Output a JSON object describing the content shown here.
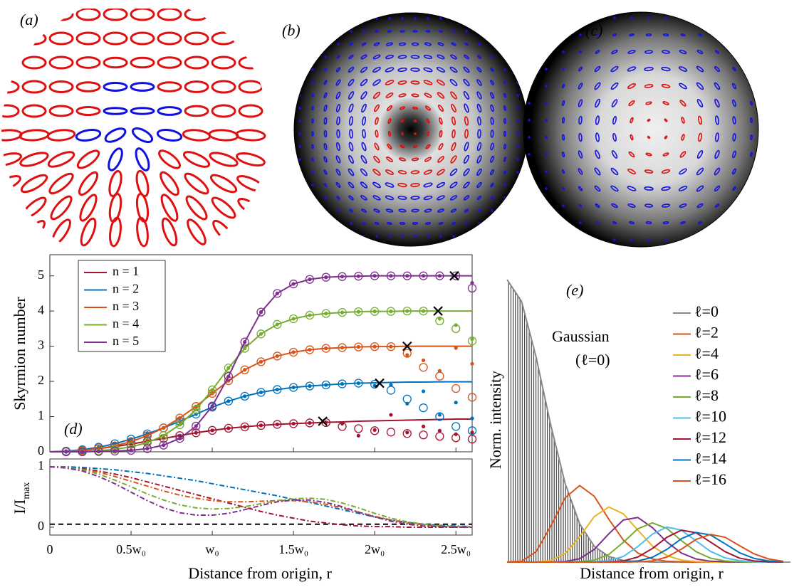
{
  "panels": [
    "(a)",
    "(b)",
    "(c)"
  ],
  "chart_data": [
    {
      "type": "line",
      "label": "(d)",
      "ylabel": "Skyrmion number",
      "legend": "upper left",
      "x": [
        0,
        0.1,
        0.2,
        0.3,
        0.4,
        0.5,
        0.6,
        0.7,
        0.8,
        0.9,
        1.0,
        1.1,
        1.2,
        1.3,
        1.4,
        1.5,
        1.6,
        1.7,
        1.8,
        1.9,
        2.0,
        2.1,
        2.2,
        2.3,
        2.4,
        2.5,
        2.6
      ],
      "xlim": [
        0,
        2.6
      ],
      "xticks": [
        0,
        0.5,
        1,
        1.5,
        2,
        2.5
      ],
      "ylim": [
        0,
        5.6
      ],
      "yticks": [
        0,
        1,
        2,
        3,
        4,
        5
      ],
      "series": [
        {
          "name": "n = 1",
          "color": "#a2142f",
          "values": [
            0,
            0.01,
            0.04,
            0.09,
            0.15,
            0.22,
            0.3,
            0.38,
            0.46,
            0.54,
            0.61,
            0.67,
            0.71,
            0.75,
            0.78,
            0.8,
            0.82,
            0.84,
            0.85,
            0.87,
            0.88,
            0.89,
            0.9,
            0.91,
            0.92,
            0.93,
            0.93
          ],
          "circles": [
            null,
            0.01,
            0.04,
            0.09,
            0.15,
            0.22,
            0.3,
            0.38,
            0.46,
            0.54,
            0.61,
            0.67,
            0.71,
            0.75,
            0.78,
            0.8,
            0.82,
            0.83,
            0.72,
            0.66,
            0.6,
            0.56,
            0.52,
            0.48,
            0.44,
            0.4,
            0.36
          ],
          "dots": [
            null,
            0.01,
            0.04,
            0.09,
            0.15,
            0.22,
            0.3,
            0.38,
            0.46,
            0.54,
            0.61,
            0.67,
            0.71,
            0.75,
            0.78,
            0.8,
            0.82,
            0.84,
            0.8,
            0.46,
            0.62,
            1.05,
            0.55,
            0.72,
            0.6,
            0.5,
            0.55
          ],
          "cross_x": 1.68,
          "cross_y": 0.87
        },
        {
          "name": "n = 2",
          "color": "#0072bd",
          "values": [
            0,
            0.02,
            0.06,
            0.13,
            0.23,
            0.36,
            0.51,
            0.68,
            0.87,
            1.07,
            1.27,
            1.44,
            1.58,
            1.69,
            1.77,
            1.83,
            1.87,
            1.9,
            1.93,
            1.95,
            1.96,
            1.97,
            1.98,
            1.98,
            1.99,
            1.99,
            1.99
          ],
          "circles": [
            null,
            0.02,
            0.06,
            0.13,
            0.23,
            0.36,
            0.51,
            0.68,
            0.87,
            1.07,
            1.27,
            1.44,
            1.58,
            1.69,
            1.77,
            1.83,
            1.87,
            1.9,
            1.93,
            1.95,
            1.92,
            1.75,
            1.5,
            1.25,
            1.0,
            0.72,
            0.6
          ],
          "dots": [
            null,
            0.02,
            0.06,
            0.13,
            0.23,
            0.36,
            0.51,
            0.68,
            0.87,
            1.07,
            1.27,
            1.44,
            1.58,
            1.69,
            1.77,
            1.83,
            1.87,
            1.9,
            1.93,
            1.95,
            1.88,
            1.9,
            1.37,
            1.72,
            1.05,
            1.4,
            0.95
          ],
          "cross_x": 2.03,
          "cross_y": 1.95
        },
        {
          "name": "n = 3",
          "color": "#d95319",
          "values": [
            0,
            0.01,
            0.04,
            0.09,
            0.17,
            0.29,
            0.46,
            0.68,
            0.96,
            1.29,
            1.66,
            2.02,
            2.33,
            2.56,
            2.72,
            2.83,
            2.9,
            2.94,
            2.96,
            2.98,
            2.99,
            2.99,
            3,
            3,
            3,
            3,
            3
          ],
          "circles": [
            null,
            0.01,
            0.04,
            0.09,
            0.17,
            0.29,
            0.46,
            0.68,
            0.96,
            1.29,
            1.66,
            2.02,
            2.33,
            2.56,
            2.72,
            2.83,
            2.9,
            2.94,
            2.96,
            2.98,
            2.99,
            2.99,
            2.8,
            2.4,
            2.15,
            1.8,
            1.55
          ],
          "dots": [
            null,
            0.01,
            0.04,
            0.09,
            0.17,
            0.29,
            0.46,
            0.68,
            0.96,
            1.29,
            1.66,
            2.02,
            2.33,
            2.56,
            2.72,
            2.83,
            2.9,
            2.94,
            2.96,
            2.98,
            2.99,
            2.99,
            2.75,
            2.6,
            2.3,
            2.95,
            2.5
          ],
          "cross_x": 2.2,
          "cross_y": 3.0
        },
        {
          "name": "n = 4",
          "color": "#77ac30",
          "values": [
            0,
            0,
            0.01,
            0.03,
            0.07,
            0.14,
            0.26,
            0.46,
            0.77,
            1.2,
            1.76,
            2.38,
            2.94,
            3.35,
            3.62,
            3.78,
            3.88,
            3.93,
            3.96,
            3.98,
            3.99,
            3.99,
            4,
            4,
            4,
            4,
            4
          ],
          "circles": [
            null,
            0,
            0.01,
            0.03,
            0.07,
            0.14,
            0.26,
            0.46,
            0.77,
            1.2,
            1.76,
            2.38,
            2.94,
            3.35,
            3.62,
            3.78,
            3.88,
            3.93,
            3.96,
            3.98,
            3.99,
            3.99,
            4,
            4,
            3.72,
            3.5,
            3.15
          ],
          "dots": [
            null,
            0,
            0.01,
            0.03,
            0.07,
            0.14,
            0.26,
            0.46,
            0.77,
            1.2,
            1.76,
            2.38,
            2.94,
            3.35,
            3.62,
            3.78,
            3.88,
            3.93,
            3.96,
            3.98,
            3.99,
            3.99,
            4,
            4,
            3.78,
            3.6,
            3.2
          ],
          "cross_x": 2.39,
          "cross_y": 4.0
        },
        {
          "name": "n = 5",
          "color": "#7e2f8e",
          "values": [
            0,
            0,
            0,
            0.01,
            0.02,
            0.04,
            0.09,
            0.19,
            0.38,
            0.73,
            1.3,
            2.14,
            3.12,
            3.97,
            4.5,
            4.77,
            4.9,
            4.96,
            4.98,
            4.99,
            5,
            5,
            5,
            5,
            5,
            5,
            5
          ],
          "circles": [
            null,
            0,
            0,
            0.01,
            0.02,
            0.04,
            0.09,
            0.19,
            0.38,
            0.73,
            1.3,
            2.14,
            3.12,
            3.97,
            4.5,
            4.77,
            4.9,
            4.96,
            4.98,
            4.99,
            5,
            5,
            5,
            5,
            5,
            5,
            4.65
          ],
          "dots": [
            null,
            0,
            0,
            0.01,
            0.02,
            0.04,
            0.09,
            0.19,
            0.38,
            0.73,
            1.3,
            2.14,
            3.12,
            3.97,
            4.5,
            4.77,
            4.9,
            4.96,
            4.98,
            4.99,
            5,
            5,
            5,
            5,
            5,
            5,
            4.8
          ],
          "cross_x": 2.49,
          "cross_y": 5.0
        }
      ]
    },
    {
      "type": "line",
      "style": "dashdot",
      "ylabel": "I/I",
      "ylabel_sub": "max",
      "xlabel": "Distance from origin, r",
      "x": [
        0,
        0.1,
        0.2,
        0.3,
        0.4,
        0.5,
        0.6,
        0.7,
        0.8,
        0.9,
        1.0,
        1.1,
        1.2,
        1.3,
        1.4,
        1.5,
        1.6,
        1.7,
        1.8,
        1.9,
        2.0,
        2.1,
        2.2,
        2.3,
        2.4,
        2.5,
        2.6
      ],
      "xlim": [
        0,
        2.6
      ],
      "xticks": [
        0,
        {
          "value": 0.5,
          "label": "0.5w₀"
        },
        {
          "value": 1,
          "label": "w₀"
        },
        {
          "value": 1.5,
          "label": "1.5w₀"
        },
        {
          "value": 2,
          "label": "2w₀"
        },
        {
          "value": 2.5,
          "label": "2.5w₀"
        }
      ],
      "ylim": [
        -0.13,
        1.13
      ],
      "yticks": [
        0,
        1
      ],
      "threshold": 0.05,
      "threshold_color": "#000000",
      "series": [
        {
          "color": "#a2142f",
          "values": [
            1,
            0.99,
            0.97,
            0.93,
            0.88,
            0.82,
            0.75,
            0.68,
            0.61,
            0.54,
            0.47,
            0.4,
            0.33,
            0.26,
            0.2,
            0.15,
            0.1,
            0.07,
            0.04,
            0.02,
            0.01,
            0.01,
            0,
            0,
            0,
            0,
            0
          ]
        },
        {
          "color": "#0072bd",
          "values": [
            1,
            1,
            0.99,
            0.97,
            0.95,
            0.92,
            0.89,
            0.85,
            0.81,
            0.77,
            0.72,
            0.67,
            0.62,
            0.57,
            0.52,
            0.46,
            0.41,
            0.35,
            0.29,
            0.23,
            0.17,
            0.12,
            0.08,
            0.05,
            0.03,
            0.02,
            0.01
          ]
        },
        {
          "color": "#d95319",
          "values": [
            1,
            0.99,
            0.96,
            0.91,
            0.84,
            0.76,
            0.68,
            0.6,
            0.53,
            0.48,
            0.44,
            0.42,
            0.42,
            0.43,
            0.44,
            0.44,
            0.42,
            0.38,
            0.32,
            0.25,
            0.18,
            0.12,
            0.07,
            0.04,
            0.02,
            0.01,
            0
          ]
        },
        {
          "color": "#77ac30",
          "values": [
            1,
            0.99,
            0.95,
            0.88,
            0.78,
            0.67,
            0.55,
            0.45,
            0.37,
            0.32,
            0.3,
            0.31,
            0.34,
            0.39,
            0.44,
            0.47,
            0.48,
            0.46,
            0.4,
            0.32,
            0.23,
            0.15,
            0.09,
            0.05,
            0.02,
            0.01,
            0
          ]
        },
        {
          "color": "#7e2f8e",
          "values": [
            1,
            0.98,
            0.93,
            0.84,
            0.72,
            0.58,
            0.44,
            0.32,
            0.24,
            0.2,
            0.2,
            0.23,
            0.29,
            0.36,
            0.42,
            0.45,
            0.45,
            0.41,
            0.34,
            0.25,
            0.17,
            0.1,
            0.05,
            0.02,
            0.01,
            0,
            0
          ]
        }
      ]
    },
    {
      "type": "line",
      "label": "(e)",
      "ylabel": "Norm. intensity",
      "xlabel": "Distance from origin, r",
      "annotation": [
        "Gaussian",
        "(ℓ=0)"
      ],
      "legend": "right",
      "x": [
        0,
        0.2,
        0.4,
        0.6,
        0.8,
        1.0,
        1.2,
        1.4,
        1.6,
        1.8,
        2.0,
        2.2,
        2.4,
        2.6,
        2.8,
        3.0,
        3.2,
        3.4,
        3.6,
        3.8
      ],
      "xlim": [
        0,
        3.9
      ],
      "ylim": [
        0,
        1
      ],
      "series": [
        {
          "name": "ℓ=0",
          "color": "#888888",
          "fill": "hatch",
          "values": [
            1,
            0.923,
            0.726,
            0.487,
            0.278,
            0.135,
            0.056,
            0.02,
            0.006,
            0.002,
            0,
            0,
            0,
            0,
            0,
            0,
            0,
            0,
            0,
            0
          ]
        },
        {
          "name": "ℓ=2",
          "color": "#d95319",
          "values": [
            0,
            0.003,
            0.037,
            0.126,
            0.228,
            0.271,
            0.233,
            0.152,
            0.078,
            0.032,
            0.011,
            0.003,
            0.001,
            0,
            0,
            0,
            0,
            0,
            0,
            0
          ]
        },
        {
          "name": "ℓ=4",
          "color": "#edb120",
          "values": [
            0,
            0,
            0,
            0.005,
            0.031,
            0.09,
            0.161,
            0.195,
            0.171,
            0.113,
            0.057,
            0.023,
            0.007,
            0.002,
            0,
            0,
            0,
            0,
            0,
            0
          ]
        },
        {
          "name": "ℓ=6",
          "color": "#7e2f8e",
          "values": [
            0,
            0,
            0,
            0,
            0.002,
            0.012,
            0.045,
            0.1,
            0.149,
            0.158,
            0.122,
            0.071,
            0.032,
            0.011,
            0.003,
            0.001,
            0,
            0,
            0,
            0
          ]
        },
        {
          "name": "ℓ=8",
          "color": "#77ac30",
          "values": [
            0,
            0,
            0,
            0,
            0,
            0.001,
            0.007,
            0.027,
            0.07,
            0.118,
            0.139,
            0.119,
            0.076,
            0.037,
            0.014,
            0.004,
            0.001,
            0,
            0,
            0
          ]
        },
        {
          "name": "ℓ=10",
          "color": "#4dbeee",
          "values": [
            0,
            0,
            0,
            0,
            0,
            0,
            0.001,
            0.005,
            0.02,
            0.055,
            0.099,
            0.124,
            0.113,
            0.075,
            0.038,
            0.015,
            0.005,
            0.001,
            0,
            0
          ]
        },
        {
          "name": "ℓ=12",
          "color": "#a2142f",
          "values": [
            0,
            0,
            0,
            0,
            0,
            0,
            0,
            0.001,
            0.004,
            0.018,
            0.048,
            0.088,
            0.113,
            0.104,
            0.071,
            0.037,
            0.014,
            0.004,
            0.001,
            0
          ]
        },
        {
          "name": "ℓ=14",
          "color": "#0072bd",
          "values": [
            0,
            0,
            0,
            0,
            0,
            0,
            0,
            0,
            0.001,
            0.004,
            0.017,
            0.045,
            0.083,
            0.105,
            0.096,
            0.065,
            0.033,
            0.013,
            0.004,
            0.001
          ]
        },
        {
          "name": "ℓ=16",
          "color": "#d95319",
          "values": [
            0,
            0,
            0,
            0,
            0,
            0,
            0,
            0,
            0,
            0.001,
            0.004,
            0.018,
            0.046,
            0.08,
            0.098,
            0.088,
            0.058,
            0.029,
            0.011,
            0.003
          ]
        }
      ]
    }
  ]
}
